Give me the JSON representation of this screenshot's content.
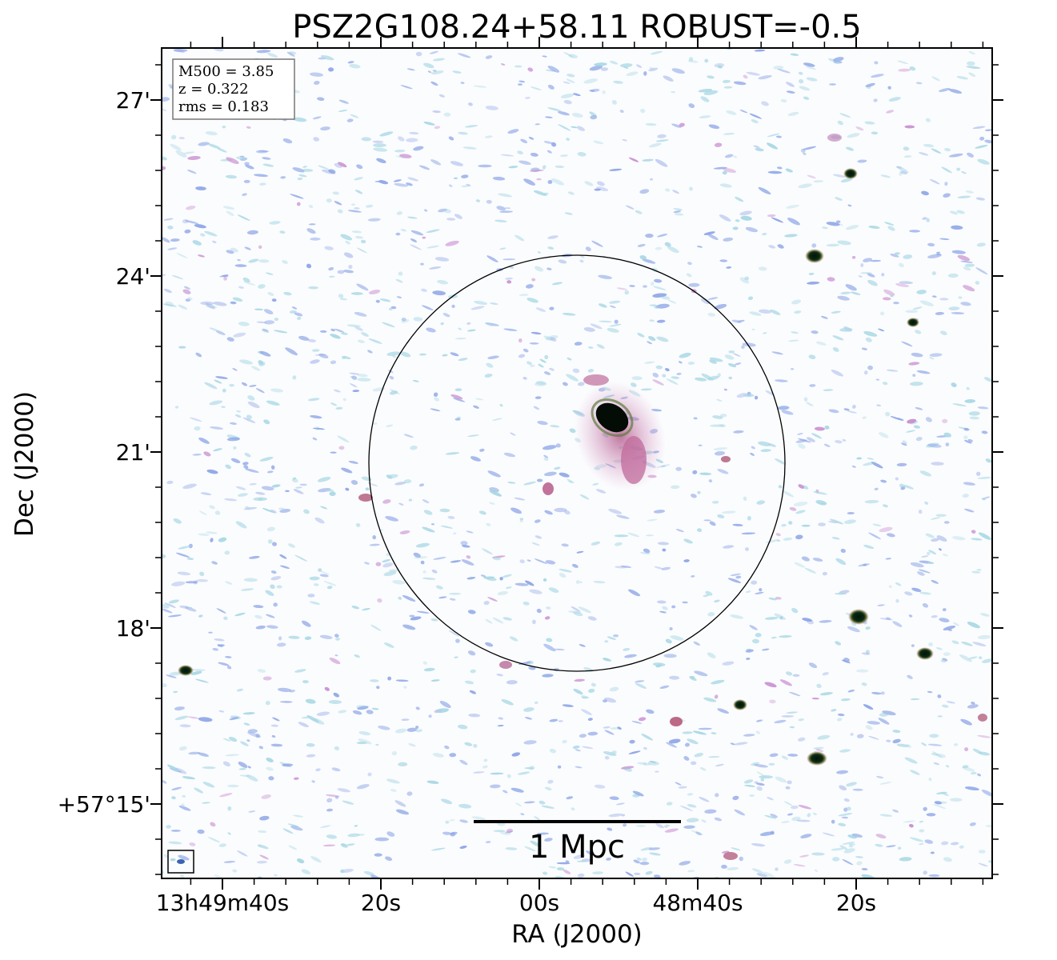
{
  "title": "PSZ2G108.24+58.11 ROBUST=-0.5",
  "info": {
    "m500": "M500 = 3.85",
    "z": "z = 0.322",
    "rms": "rms = 0.183"
  },
  "axes": {
    "xlabel": "RA (J2000)",
    "ylabel": "Dec (J2000)",
    "xticks": [
      "13h49m40s",
      "20s",
      "00s",
      "48m40s",
      "20s"
    ],
    "yticks": [
      "27'",
      "24'",
      "21'",
      "18'",
      "+57°15'"
    ]
  },
  "scalebar": {
    "label": "1 Mpc"
  },
  "colors": {
    "noise_blue": "#8ea6e6",
    "noise_cyan": "#a9d8e4",
    "noise_pink": "#c98fd0",
    "source_core": "#0a1a0e",
    "source_halo": "#c5799a"
  }
}
